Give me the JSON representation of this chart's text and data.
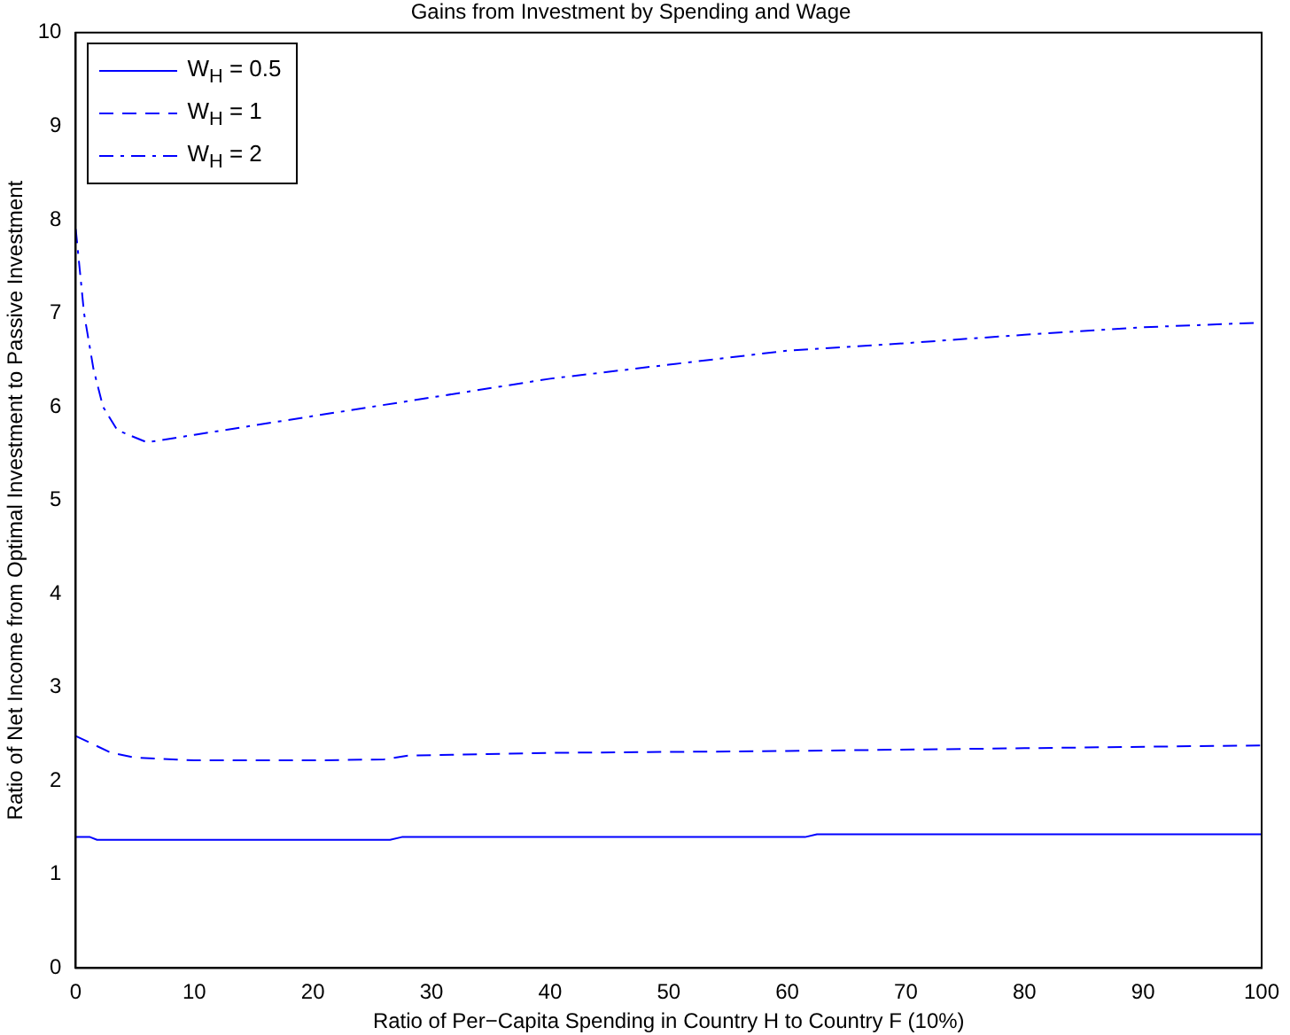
{
  "chart_data": {
    "type": "line",
    "title": "Gains from Investment by Spending and Wage",
    "xlabel": "Ratio of Per−Capita Spending in Country H to Country F (10%)",
    "ylabel": "Ratio of Net Income from Optimal Investment to Passive Investment",
    "xlim": [
      0,
      100
    ],
    "xticks": [
      0,
      10,
      20,
      30,
      40,
      50,
      60,
      70,
      80,
      90,
      100
    ],
    "ylim": [
      0,
      10
    ],
    "yticks": [
      0,
      1,
      2,
      3,
      4,
      5,
      6,
      7,
      8,
      9,
      10
    ],
    "grid": false,
    "legend": "top left",
    "marker": "none",
    "series": [
      {
        "name": "W$_{H}$ = 0.5",
        "color": "#0000ff",
        "line_style": "solid",
        "x": [
          0,
          1.2,
          1.8,
          26.5,
          27.5,
          61.5,
          62.5,
          100
        ],
        "values": [
          1.4,
          1.4,
          1.37,
          1.37,
          1.4,
          1.4,
          1.43,
          1.43
        ]
      },
      {
        "name": "W$_{H}$ = 1",
        "color": "#0000ff",
        "line_style": "dashed",
        "x": [
          0,
          1,
          3,
          5,
          10,
          20,
          26,
          28,
          40,
          60,
          80,
          100
        ],
        "values": [
          2.48,
          2.42,
          2.3,
          2.25,
          2.22,
          2.22,
          2.23,
          2.27,
          2.3,
          2.32,
          2.35,
          2.38
        ]
      },
      {
        "name": "W$_{H}$ = 2",
        "color": "#0000ff",
        "line_style": "dashdot",
        "x": [
          0,
          0.7,
          1.5,
          2.3,
          3.5,
          6,
          10,
          20,
          30,
          40,
          50,
          60,
          70,
          80,
          90,
          100
        ],
        "values": [
          7.9,
          7,
          6.4,
          6,
          5.75,
          5.62,
          5.7,
          5.9,
          6.1,
          6.3,
          6.45,
          6.6,
          6.68,
          6.77,
          6.85,
          6.9
        ]
      }
    ]
  }
}
